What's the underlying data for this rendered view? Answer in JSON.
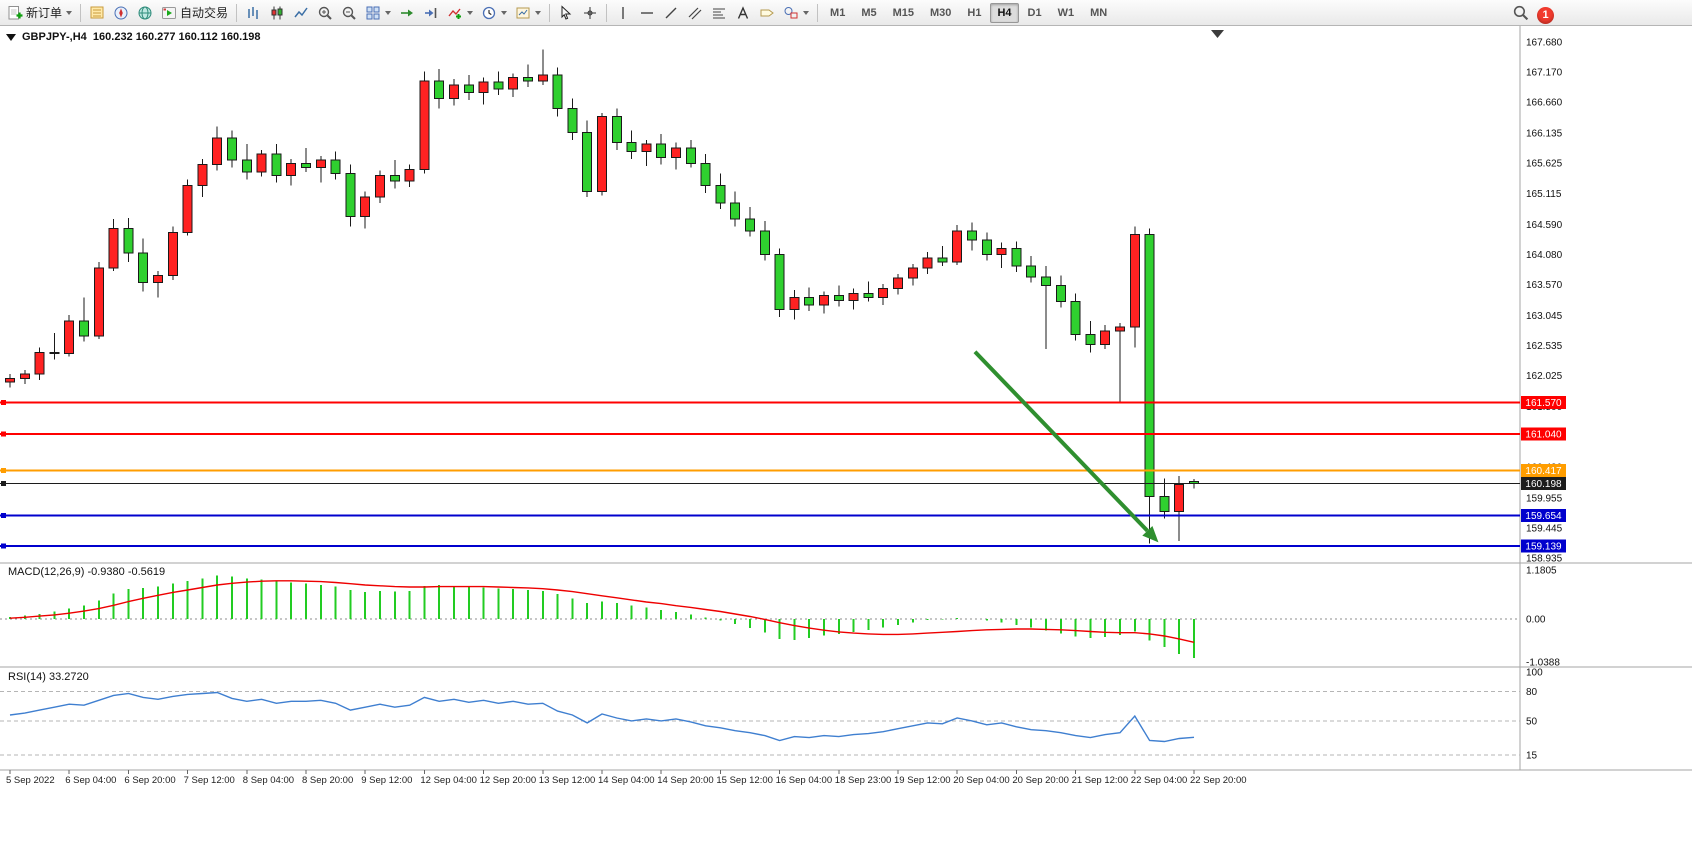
{
  "toolbar": {
    "new_order_label": "新订单",
    "auto_trading_label": "自动交易",
    "timeframes": [
      "M1",
      "M5",
      "M15",
      "M30",
      "H1",
      "H4",
      "D1",
      "W1",
      "MN"
    ],
    "active_timeframe": "H4",
    "notification_count": "1",
    "icon_names": [
      "new-order-icon",
      "chevron-down-icon",
      "market-watch-icon",
      "navigator-icon",
      "terminal-icon",
      "auto-trading-icon",
      "bar-chart-icon",
      "candlestick-chart-icon",
      "line-chart-icon",
      "zoom-in-icon",
      "zoom-out-icon",
      "tile-windows-icon",
      "auto-scroll-icon",
      "chart-shift-icon",
      "indicators-icon",
      "periods-icon",
      "templates-icon",
      "cursor-icon",
      "crosshair-icon",
      "vertical-line-icon",
      "horizontal-line-icon",
      "trendline-icon",
      "channel-icon",
      "fibonacci-icon",
      "text-icon",
      "label-icon",
      "shapes-icon",
      "search-icon",
      "notification-badge",
      "one-click-trading-icon",
      "chart-shift-marker-icon"
    ]
  },
  "chart": {
    "symbol": "GBPJPY-",
    "period": "H4",
    "info_line": "GBPJPY-,H4  160.232 160.277 160.112 160.198"
  },
  "chart_data": {
    "type": "candlestick",
    "symbol": "GBPJPY-",
    "timeframe": "H4",
    "current_ohlc": {
      "open": 160.232,
      "high": 160.277,
      "low": 160.112,
      "close": 160.198
    },
    "bars_per_label": 4,
    "x_labels": [
      "5 Sep 2022",
      "6 Sep 04:00",
      "6 Sep 20:00",
      "7 Sep 12:00",
      "8 Sep 04:00",
      "8 Sep 20:00",
      "9 Sep 12:00",
      "12 Sep 04:00",
      "12 Sep 20:00",
      "13 Sep 12:00",
      "14 Sep 04:00",
      "14 Sep 20:00",
      "15 Sep 12:00",
      "16 Sep 04:00",
      "18 Sep 23:00",
      "19 Sep 12:00",
      "20 Sep 04:00",
      "20 Sep 20:00",
      "21 Sep 12:00",
      "22 Sep 04:00",
      "22 Sep 20:00"
    ],
    "price_axis_ticks": [
      "167.680",
      "167.170",
      "166.660",
      "166.135",
      "165.625",
      "165.115",
      "164.590",
      "164.080",
      "163.570",
      "163.045",
      "162.535",
      "162.025",
      "161.500",
      "160.990",
      "160.480",
      "159.955",
      "159.445",
      "158.935"
    ],
    "candles": [
      [
        161.92,
        162.05,
        161.82,
        161.98
      ],
      [
        161.98,
        162.12,
        161.88,
        162.05
      ],
      [
        162.05,
        162.5,
        161.95,
        162.42
      ],
      [
        162.42,
        162.75,
        162.3,
        162.4
      ],
      [
        162.4,
        163.05,
        162.35,
        162.95
      ],
      [
        162.95,
        163.35,
        162.6,
        162.7
      ],
      [
        162.7,
        163.95,
        162.65,
        163.85
      ],
      [
        163.85,
        164.68,
        163.8,
        164.52
      ],
      [
        164.52,
        164.7,
        163.95,
        164.1
      ],
      [
        164.1,
        164.35,
        163.45,
        163.6
      ],
      [
        163.6,
        163.8,
        163.35,
        163.72
      ],
      [
        163.72,
        164.55,
        163.65,
        164.45
      ],
      [
        164.45,
        165.35,
        164.4,
        165.25
      ],
      [
        165.25,
        165.7,
        165.05,
        165.6
      ],
      [
        165.6,
        166.25,
        165.5,
        166.05
      ],
      [
        166.05,
        166.18,
        165.55,
        165.68
      ],
      [
        165.68,
        165.95,
        165.35,
        165.48
      ],
      [
        165.48,
        165.85,
        165.4,
        165.78
      ],
      [
        165.78,
        165.95,
        165.3,
        165.42
      ],
      [
        165.42,
        165.7,
        165.25,
        165.62
      ],
      [
        165.62,
        165.88,
        165.48,
        165.55
      ],
      [
        165.55,
        165.75,
        165.3,
        165.68
      ],
      [
        165.68,
        165.82,
        165.35,
        165.45
      ],
      [
        165.45,
        165.6,
        164.55,
        164.72
      ],
      [
        164.72,
        165.15,
        164.52,
        165.05
      ],
      [
        165.05,
        165.5,
        164.95,
        165.42
      ],
      [
        165.42,
        165.68,
        165.2,
        165.32
      ],
      [
        165.32,
        165.6,
        165.22,
        165.52
      ],
      [
        165.52,
        167.18,
        165.45,
        167.02
      ],
      [
        167.02,
        167.22,
        166.55,
        166.72
      ],
      [
        166.72,
        167.05,
        166.6,
        166.95
      ],
      [
        166.95,
        167.12,
        166.7,
        166.82
      ],
      [
        166.82,
        167.08,
        166.62,
        167.0
      ],
      [
        167.0,
        167.18,
        166.78,
        166.88
      ],
      [
        166.88,
        167.15,
        166.75,
        167.08
      ],
      [
        167.08,
        167.3,
        166.92,
        167.02
      ],
      [
        167.02,
        167.55,
        166.95,
        167.12
      ],
      [
        167.12,
        167.25,
        166.42,
        166.55
      ],
      [
        166.55,
        166.72,
        166.02,
        166.15
      ],
      [
        166.15,
        166.35,
        165.05,
        165.15
      ],
      [
        165.15,
        166.48,
        165.08,
        166.42
      ],
      [
        166.42,
        166.55,
        165.85,
        165.98
      ],
      [
        165.98,
        166.18,
        165.7,
        165.82
      ],
      [
        165.82,
        166.02,
        165.58,
        165.95
      ],
      [
        165.95,
        166.12,
        165.6,
        165.72
      ],
      [
        165.72,
        165.98,
        165.52,
        165.88
      ],
      [
        165.88,
        166.02,
        165.55,
        165.62
      ],
      [
        165.62,
        165.78,
        165.12,
        165.25
      ],
      [
        165.25,
        165.45,
        164.85,
        164.95
      ],
      [
        164.95,
        165.15,
        164.55,
        164.68
      ],
      [
        164.68,
        164.88,
        164.38,
        164.48
      ],
      [
        164.48,
        164.65,
        163.98,
        164.08
      ],
      [
        164.08,
        164.18,
        163.02,
        163.15
      ],
      [
        163.15,
        163.48,
        162.98,
        163.35
      ],
      [
        163.35,
        163.52,
        163.12,
        163.22
      ],
      [
        163.22,
        163.45,
        163.08,
        163.38
      ],
      [
        163.38,
        163.55,
        163.2,
        163.3
      ],
      [
        163.3,
        163.5,
        163.15,
        163.42
      ],
      [
        163.42,
        163.62,
        163.28,
        163.35
      ],
      [
        163.35,
        163.58,
        163.22,
        163.5
      ],
      [
        163.5,
        163.75,
        163.4,
        163.68
      ],
      [
        163.68,
        163.92,
        163.55,
        163.85
      ],
      [
        163.85,
        164.12,
        163.75,
        164.02
      ],
      [
        164.02,
        164.22,
        163.88,
        163.95
      ],
      [
        163.95,
        164.58,
        163.9,
        164.48
      ],
      [
        164.48,
        164.62,
        164.15,
        164.32
      ],
      [
        164.32,
        164.45,
        163.98,
        164.08
      ],
      [
        164.08,
        164.28,
        163.85,
        164.18
      ],
      [
        164.18,
        164.3,
        163.78,
        163.88
      ],
      [
        163.88,
        164.05,
        163.6,
        163.7
      ],
      [
        163.7,
        163.88,
        162.48,
        163.55
      ],
      [
        163.55,
        163.72,
        163.18,
        163.28
      ],
      [
        163.28,
        163.42,
        162.62,
        162.72
      ],
      [
        162.72,
        162.95,
        162.42,
        162.55
      ],
      [
        162.55,
        162.88,
        162.48,
        162.78
      ],
      [
        162.78,
        162.92,
        161.55,
        162.85
      ],
      [
        162.85,
        164.55,
        162.5,
        164.42
      ],
      [
        164.42,
        164.52,
        159.18,
        159.98
      ],
      [
        159.98,
        160.28,
        159.6,
        159.72
      ],
      [
        159.72,
        160.32,
        159.22,
        160.18
      ],
      [
        160.232,
        160.277,
        160.112,
        160.198
      ]
    ],
    "price_lines": [
      {
        "price": 161.57,
        "label": "161.570",
        "color": "#ff0000",
        "kind": "resistance"
      },
      {
        "price": 161.04,
        "label": "161.040",
        "color": "#ff0000",
        "kind": "resistance"
      },
      {
        "price": 160.417,
        "label": "160.417",
        "color": "#ff9d00",
        "kind": "alert"
      },
      {
        "price": 160.198,
        "label": "160.198",
        "color": "#1c1c1c",
        "kind": "bid"
      },
      {
        "price": 159.654,
        "label": "159.654",
        "color": "#0000cd",
        "kind": "support"
      },
      {
        "price": 159.139,
        "label": "159.139",
        "color": "#0000cd",
        "kind": "support"
      }
    ],
    "arrow_annotation": {
      "from_bar": 65.2,
      "from_price": 162.43,
      "to_bar": 77.6,
      "to_price": 159.2,
      "color": "#2f8f2f"
    },
    "colors": {
      "bull": "#ff2222",
      "bear": "#2fd02f",
      "wick": "#1a1a1a",
      "candle_border": "#1a1a1a",
      "macd_hist": "#22cc22",
      "macd_signal": "#ee0000",
      "rsi_line": "#3f7fd0"
    },
    "macd": {
      "label": "MACD(12,26,9) -0.9380 -0.5619",
      "value": -0.938,
      "signal_value": -0.5619,
      "axis_ticks": [
        "1.1805",
        "0.00",
        "-1.0388"
      ],
      "hist": [
        0.05,
        0.08,
        0.12,
        0.18,
        0.25,
        0.32,
        0.45,
        0.62,
        0.72,
        0.75,
        0.78,
        0.85,
        0.92,
        0.98,
        1.05,
        1.02,
        0.98,
        0.95,
        0.9,
        0.88,
        0.85,
        0.82,
        0.78,
        0.7,
        0.65,
        0.68,
        0.66,
        0.68,
        0.8,
        0.82,
        0.8,
        0.78,
        0.76,
        0.74,
        0.72,
        0.7,
        0.68,
        0.6,
        0.5,
        0.38,
        0.42,
        0.38,
        0.33,
        0.28,
        0.22,
        0.17,
        0.11,
        0.04,
        -0.04,
        -0.12,
        -0.22,
        -0.32,
        -0.48,
        -0.5,
        -0.46,
        -0.4,
        -0.36,
        -0.31,
        -0.27,
        -0.21,
        -0.14,
        -0.08,
        -0.03,
        -0.01,
        0.02,
        0.0,
        -0.04,
        -0.08,
        -0.14,
        -0.2,
        -0.28,
        -0.35,
        -0.42,
        -0.46,
        -0.43,
        -0.38,
        -0.3,
        -0.52,
        -0.68,
        -0.84,
        -0.938
      ],
      "signal": [
        0.02,
        0.04,
        0.07,
        0.1,
        0.14,
        0.19,
        0.25,
        0.33,
        0.42,
        0.5,
        0.57,
        0.64,
        0.7,
        0.76,
        0.82,
        0.86,
        0.89,
        0.91,
        0.92,
        0.92,
        0.91,
        0.9,
        0.88,
        0.85,
        0.82,
        0.8,
        0.78,
        0.77,
        0.77,
        0.78,
        0.78,
        0.78,
        0.78,
        0.77,
        0.76,
        0.75,
        0.73,
        0.7,
        0.66,
        0.61,
        0.56,
        0.51,
        0.46,
        0.41,
        0.37,
        0.32,
        0.28,
        0.23,
        0.18,
        0.12,
        0.06,
        -0.01,
        -0.09,
        -0.16,
        -0.22,
        -0.27,
        -0.31,
        -0.34,
        -0.36,
        -0.37,
        -0.37,
        -0.36,
        -0.34,
        -0.32,
        -0.3,
        -0.28,
        -0.26,
        -0.25,
        -0.24,
        -0.24,
        -0.25,
        -0.26,
        -0.28,
        -0.3,
        -0.32,
        -0.33,
        -0.33,
        -0.36,
        -0.41,
        -0.48,
        -0.5619
      ]
    },
    "rsi": {
      "label": "RSI(14) 33.2720",
      "value": 33.272,
      "levels": [
        80,
        50,
        15
      ],
      "axis_ticks": [
        "100",
        "80",
        "50",
        "15"
      ],
      "values": [
        56,
        58,
        61,
        64,
        67,
        66,
        71,
        76,
        78,
        74,
        72,
        75,
        77,
        78,
        79,
        73,
        70,
        72,
        68,
        70,
        70,
        71,
        68,
        61,
        64,
        67,
        64,
        66,
        74,
        70,
        72,
        69,
        71,
        68,
        70,
        67,
        68,
        60,
        56,
        48,
        57,
        53,
        50,
        52,
        50,
        52,
        49,
        45,
        43,
        40,
        38,
        35,
        30,
        34,
        33,
        35,
        34,
        36,
        37,
        39,
        42,
        45,
        48,
        47,
        53,
        50,
        46,
        48,
        44,
        41,
        40,
        38,
        35,
        33,
        36,
        38,
        55,
        30,
        29,
        32,
        33.27
      ]
    }
  }
}
